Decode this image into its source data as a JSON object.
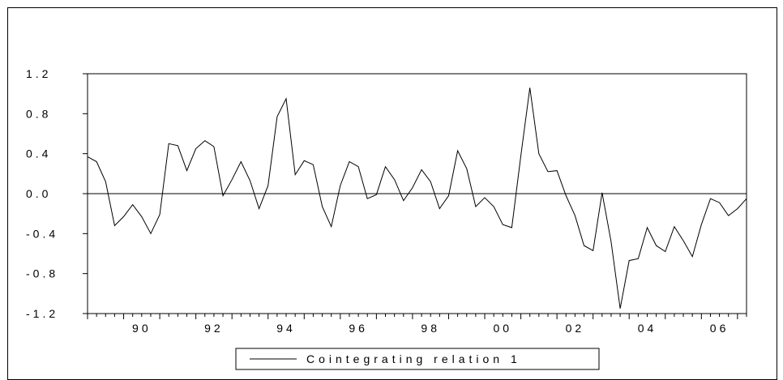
{
  "chart_data": {
    "type": "line",
    "title": "",
    "xlabel": "",
    "ylabel": "",
    "y_ticks": [
      "1.2",
      "0.8",
      "0.4",
      "0.0",
      "-0.4",
      "-0.8",
      "-1.2"
    ],
    "y_tick_values": [
      1.2,
      0.8,
      0.4,
      0.0,
      -0.4,
      -0.8,
      -1.2
    ],
    "x_ticks": [
      "90",
      "92",
      "94",
      "96",
      "98",
      "00",
      "02",
      "04",
      "06"
    ],
    "x_tick_values": [
      1990,
      1992,
      1994,
      1996,
      1998,
      2000,
      2002,
      2004,
      2006
    ],
    "ylim": [
      -1.2,
      1.2
    ],
    "xlim": [
      1989.0,
      2007.25
    ],
    "zero_line": true,
    "legend_position": "bottom-center",
    "series": [
      {
        "name": "Cointegrating relation 1",
        "color": "#000000",
        "x": [
          1989.0,
          1989.25,
          1989.5,
          1989.75,
          1990.0,
          1990.25,
          1990.5,
          1990.75,
          1991.0,
          1991.25,
          1991.5,
          1991.75,
          1992.0,
          1992.25,
          1992.5,
          1992.75,
          1993.0,
          1993.25,
          1993.5,
          1993.75,
          1994.0,
          1994.25,
          1994.5,
          1994.75,
          1995.0,
          1995.25,
          1995.5,
          1995.75,
          1996.0,
          1996.25,
          1996.5,
          1996.75,
          1997.0,
          1997.25,
          1997.5,
          1997.75,
          1998.0,
          1998.25,
          1998.5,
          1998.75,
          1999.0,
          1999.25,
          1999.5,
          1999.75,
          2000.0,
          2000.25,
          2000.5,
          2000.75,
          2001.0,
          2001.25,
          2001.5,
          2001.75,
          2002.0,
          2002.25,
          2002.5,
          2002.75,
          2003.0,
          2003.25,
          2003.5,
          2003.75,
          2004.0,
          2004.25,
          2004.5,
          2004.75,
          2005.0,
          2005.25,
          2005.5,
          2005.75,
          2006.0,
          2006.25,
          2006.5,
          2006.75,
          2007.0,
          2007.25
        ],
        "values": [
          0.37,
          0.32,
          0.12,
          -0.32,
          -0.23,
          -0.11,
          -0.23,
          -0.4,
          -0.21,
          0.5,
          0.48,
          0.23,
          0.45,
          0.53,
          0.47,
          -0.02,
          0.14,
          0.32,
          0.13,
          -0.15,
          0.08,
          0.77,
          0.95,
          0.19,
          0.33,
          0.29,
          -0.13,
          -0.33,
          0.08,
          0.32,
          0.27,
          -0.05,
          -0.01,
          0.27,
          0.14,
          -0.07,
          0.06,
          0.24,
          0.12,
          -0.15,
          -0.02,
          0.43,
          0.25,
          -0.13,
          -0.04,
          -0.13,
          -0.31,
          -0.34,
          0.38,
          1.06,
          0.4,
          0.22,
          0.23,
          -0.02,
          -0.22,
          -0.52,
          -0.57,
          0.01,
          -0.48,
          -1.15,
          -0.67,
          -0.65,
          -0.34,
          -0.52,
          -0.58,
          -0.33,
          -0.47,
          -0.63,
          -0.31,
          -0.05,
          -0.09,
          -0.22,
          -0.15,
          -0.05
        ]
      }
    ]
  }
}
